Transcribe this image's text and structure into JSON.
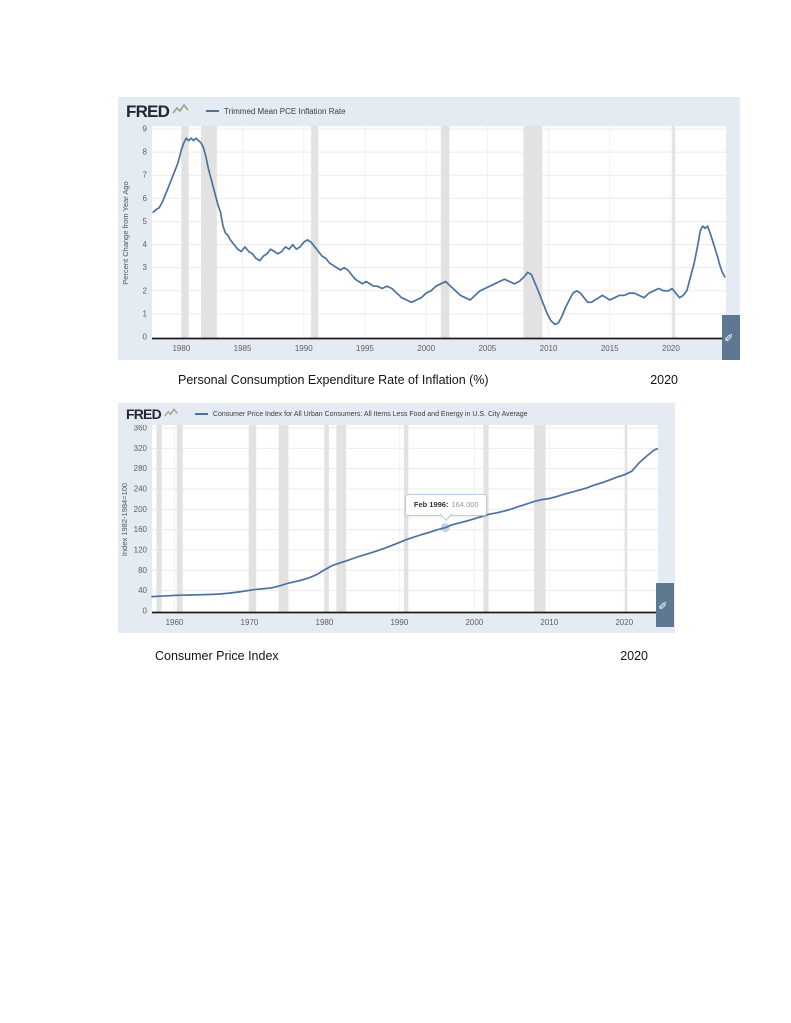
{
  "captions": [
    {
      "text": "Personal Consumption Expenditure Rate of Inflation (%)",
      "year": "2020"
    },
    {
      "text": "Consumer Price Index",
      "year": "2020"
    }
  ],
  "chart_data": [
    {
      "type": "line",
      "brand": "FRED",
      "legend_label": "Trimmed Mean PCE Inflation Rate",
      "title": "Trimmed Mean PCE Inflation Rate",
      "xlabel": "",
      "ylabel": "Percent Change from Year Ago",
      "ylim": [
        0,
        9
      ],
      "x_domain": [
        1977.6,
        2024.5
      ],
      "y_ticks": [
        0,
        1,
        2,
        3,
        4,
        5,
        6,
        7,
        8,
        9
      ],
      "x_ticks": [
        1980,
        1985,
        1990,
        1995,
        2000,
        2005,
        2010,
        2015,
        2020
      ],
      "grid": true,
      "legend_position": "top",
      "colors": {
        "line": "#4b72a0",
        "recession": "#e2e2e2",
        "axis": "#1c1c1c",
        "background": "#e4ebf2"
      },
      "recession_bands": [
        [
          1980.0,
          1980.6
        ],
        [
          1981.6,
          1982.9
        ],
        [
          1990.6,
          1991.2
        ],
        [
          2001.2,
          2001.9
        ],
        [
          2007.95,
          2009.5
        ],
        [
          2020.1,
          2020.35
        ]
      ],
      "series": [
        {
          "name": "Trimmed Mean PCE Inflation Rate",
          "points": [
            [
              1977.7,
              5.4
            ],
            [
              1977.9,
              5.5
            ],
            [
              1978.2,
              5.6
            ],
            [
              1978.5,
              5.9
            ],
            [
              1978.8,
              6.3
            ],
            [
              1979.1,
              6.7
            ],
            [
              1979.4,
              7.1
            ],
            [
              1979.7,
              7.5
            ],
            [
              1980.0,
              8.1
            ],
            [
              1980.2,
              8.4
            ],
            [
              1980.4,
              8.6
            ],
            [
              1980.6,
              8.5
            ],
            [
              1980.8,
              8.6
            ],
            [
              1981.0,
              8.5
            ],
            [
              1981.2,
              8.6
            ],
            [
              1981.4,
              8.5
            ],
            [
              1981.6,
              8.4
            ],
            [
              1981.8,
              8.2
            ],
            [
              1982.0,
              7.8
            ],
            [
              1982.2,
              7.3
            ],
            [
              1982.4,
              6.9
            ],
            [
              1982.6,
              6.5
            ],
            [
              1982.8,
              6.1
            ],
            [
              1983.0,
              5.7
            ],
            [
              1983.2,
              5.4
            ],
            [
              1983.4,
              4.8
            ],
            [
              1983.6,
              4.5
            ],
            [
              1983.8,
              4.4
            ],
            [
              1984.0,
              4.2
            ],
            [
              1984.3,
              4.0
            ],
            [
              1984.6,
              3.8
            ],
            [
              1984.9,
              3.7
            ],
            [
              1985.2,
              3.9
            ],
            [
              1985.5,
              3.7
            ],
            [
              1985.8,
              3.6
            ],
            [
              1986.1,
              3.4
            ],
            [
              1986.4,
              3.3
            ],
            [
              1986.7,
              3.5
            ],
            [
              1987.0,
              3.6
            ],
            [
              1987.3,
              3.8
            ],
            [
              1987.6,
              3.7
            ],
            [
              1987.9,
              3.6
            ],
            [
              1988.2,
              3.7
            ],
            [
              1988.5,
              3.9
            ],
            [
              1988.8,
              3.8
            ],
            [
              1989.1,
              4.0
            ],
            [
              1989.4,
              3.8
            ],
            [
              1989.7,
              3.9
            ],
            [
              1990.0,
              4.1
            ],
            [
              1990.3,
              4.2
            ],
            [
              1990.6,
              4.1
            ],
            [
              1990.9,
              3.9
            ],
            [
              1991.2,
              3.7
            ],
            [
              1991.5,
              3.5
            ],
            [
              1991.8,
              3.4
            ],
            [
              1992.1,
              3.2
            ],
            [
              1992.4,
              3.1
            ],
            [
              1992.7,
              3.0
            ],
            [
              1993.0,
              2.9
            ],
            [
              1993.3,
              3.0
            ],
            [
              1993.6,
              2.9
            ],
            [
              1993.9,
              2.7
            ],
            [
              1994.2,
              2.5
            ],
            [
              1994.5,
              2.4
            ],
            [
              1994.8,
              2.3
            ],
            [
              1995.1,
              2.4
            ],
            [
              1995.4,
              2.3
            ],
            [
              1995.7,
              2.2
            ],
            [
              1996.0,
              2.2
            ],
            [
              1996.4,
              2.1
            ],
            [
              1996.8,
              2.2
            ],
            [
              1997.2,
              2.1
            ],
            [
              1997.6,
              1.9
            ],
            [
              1998.0,
              1.7
            ],
            [
              1998.4,
              1.6
            ],
            [
              1998.8,
              1.5
            ],
            [
              1999.2,
              1.6
            ],
            [
              1999.6,
              1.7
            ],
            [
              2000.0,
              1.9
            ],
            [
              2000.4,
              2.0
            ],
            [
              2000.8,
              2.2
            ],
            [
              2001.2,
              2.3
            ],
            [
              2001.6,
              2.4
            ],
            [
              2002.0,
              2.2
            ],
            [
              2002.4,
              2.0
            ],
            [
              2002.8,
              1.8
            ],
            [
              2003.2,
              1.7
            ],
            [
              2003.6,
              1.6
            ],
            [
              2004.0,
              1.8
            ],
            [
              2004.4,
              2.0
            ],
            [
              2004.8,
              2.1
            ],
            [
              2005.2,
              2.2
            ],
            [
              2005.6,
              2.3
            ],
            [
              2006.0,
              2.4
            ],
            [
              2006.4,
              2.5
            ],
            [
              2006.8,
              2.4
            ],
            [
              2007.2,
              2.3
            ],
            [
              2007.6,
              2.4
            ],
            [
              2008.0,
              2.6
            ],
            [
              2008.3,
              2.8
            ],
            [
              2008.6,
              2.7
            ],
            [
              2009.0,
              2.2
            ],
            [
              2009.3,
              1.8
            ],
            [
              2009.6,
              1.4
            ],
            [
              2009.9,
              1.0
            ],
            [
              2010.2,
              0.7
            ],
            [
              2010.5,
              0.55
            ],
            [
              2010.8,
              0.6
            ],
            [
              2011.1,
              0.9
            ],
            [
              2011.4,
              1.3
            ],
            [
              2011.7,
              1.6
            ],
            [
              2012.0,
              1.9
            ],
            [
              2012.3,
              2.0
            ],
            [
              2012.6,
              1.9
            ],
            [
              2012.9,
              1.7
            ],
            [
              2013.2,
              1.5
            ],
            [
              2013.5,
              1.5
            ],
            [
              2013.8,
              1.6
            ],
            [
              2014.1,
              1.7
            ],
            [
              2014.4,
              1.8
            ],
            [
              2014.7,
              1.7
            ],
            [
              2015.0,
              1.6
            ],
            [
              2015.4,
              1.7
            ],
            [
              2015.8,
              1.8
            ],
            [
              2016.2,
              1.8
            ],
            [
              2016.6,
              1.9
            ],
            [
              2017.0,
              1.9
            ],
            [
              2017.4,
              1.8
            ],
            [
              2017.8,
              1.7
            ],
            [
              2018.2,
              1.9
            ],
            [
              2018.6,
              2.0
            ],
            [
              2019.0,
              2.1
            ],
            [
              2019.4,
              2.0
            ],
            [
              2019.8,
              2.0
            ],
            [
              2020.1,
              2.1
            ],
            [
              2020.4,
              1.9
            ],
            [
              2020.7,
              1.7
            ],
            [
              2021.0,
              1.8
            ],
            [
              2021.3,
              2.0
            ],
            [
              2021.6,
              2.6
            ],
            [
              2021.9,
              3.2
            ],
            [
              2022.2,
              4.0
            ],
            [
              2022.4,
              4.6
            ],
            [
              2022.6,
              4.8
            ],
            [
              2022.8,
              4.7
            ],
            [
              2023.0,
              4.8
            ],
            [
              2023.2,
              4.5
            ],
            [
              2023.5,
              4.0
            ],
            [
              2023.8,
              3.5
            ],
            [
              2024.0,
              3.1
            ],
            [
              2024.2,
              2.8
            ],
            [
              2024.4,
              2.6
            ]
          ]
        }
      ]
    },
    {
      "type": "line",
      "brand": "FRED",
      "legend_label": "Consumer Price Index for All Urban Consumers: All Items Less Food and Energy in U.S. City Average",
      "title": "Consumer Price Index for All Urban Consumers: All Items Less Food and Energy in U.S. City Average",
      "xlabel": "",
      "ylabel": "Index 1982-1984=100",
      "ylim": [
        0,
        360
      ],
      "x_domain": [
        1957,
        2024.5
      ],
      "y_ticks": [
        0,
        40,
        80,
        120,
        160,
        200,
        240,
        280,
        320,
        360
      ],
      "x_ticks": [
        1960,
        1970,
        1980,
        1990,
        2000,
        2010,
        2020
      ],
      "grid": true,
      "legend_position": "top",
      "colors": {
        "line": "#4b72a0",
        "recession": "#e2e2e2",
        "axis": "#1c1c1c",
        "background": "#e4ebf2"
      },
      "recession_bands": [
        [
          1957.6,
          1958.3
        ],
        [
          1960.3,
          1961.1
        ],
        [
          1969.9,
          1970.9
        ],
        [
          1973.9,
          1975.2
        ],
        [
          1980.0,
          1980.6
        ],
        [
          1981.6,
          1982.9
        ],
        [
          1990.6,
          1991.2
        ],
        [
          2001.2,
          2001.9
        ],
        [
          2007.95,
          2009.5
        ],
        [
          2020.1,
          2020.35
        ]
      ],
      "tooltip": {
        "label": "Feb 1996:",
        "value": "164.000",
        "x": 1996.12,
        "y": 164
      },
      "series": [
        {
          "name": "Consumer Price Index for All Urban Consumers: All Items Less Food and Energy in U.S. City Average",
          "points": [
            [
              1957,
              28.4
            ],
            [
              1958,
              29.2
            ],
            [
              1959,
              29.9
            ],
            [
              1960,
              30.6
            ],
            [
              1961,
              31.0
            ],
            [
              1962,
              31.4
            ],
            [
              1963,
              31.8
            ],
            [
              1964,
              32.3
            ],
            [
              1965,
              32.7
            ],
            [
              1966,
              33.5
            ],
            [
              1967,
              34.7
            ],
            [
              1968,
              36.3
            ],
            [
              1969,
              38.4
            ],
            [
              1970,
              40.8
            ],
            [
              1971,
              42.7
            ],
            [
              1972,
              44.0
            ],
            [
              1973,
              45.6
            ],
            [
              1974,
              49.4
            ],
            [
              1975,
              53.9
            ],
            [
              1976,
              57.4
            ],
            [
              1977,
              61.0
            ],
            [
              1978,
              65.5
            ],
            [
              1979,
              71.9
            ],
            [
              1980,
              80.9
            ],
            [
              1981,
              89.2
            ],
            [
              1982,
              94.3
            ],
            [
              1983,
              99.0
            ],
            [
              1984,
              104.3
            ],
            [
              1985,
              108.9
            ],
            [
              1986,
              113.5
            ],
            [
              1987,
              118.2
            ],
            [
              1988,
              123.4
            ],
            [
              1989,
              129.0
            ],
            [
              1990,
              135.0
            ],
            [
              1991,
              140.9
            ],
            [
              1992,
              145.8
            ],
            [
              1993,
              150.5
            ],
            [
              1994,
              154.9
            ],
            [
              1995,
              159.5
            ],
            [
              1996.12,
              164.0
            ],
            [
              1997,
              169.5
            ],
            [
              1998,
              173.4
            ],
            [
              1999,
              177.0
            ],
            [
              2000,
              181.3
            ],
            [
              2001,
              186.1
            ],
            [
              2002,
              190.5
            ],
            [
              2003,
              193.2
            ],
            [
              2004,
              196.6
            ],
            [
              2005,
              200.9
            ],
            [
              2006,
              205.9
            ],
            [
              2007,
              210.7
            ],
            [
              2008,
              215.6
            ],
            [
              2009,
              219.2
            ],
            [
              2010,
              221.3
            ],
            [
              2011,
              225.0
            ],
            [
              2012,
              229.8
            ],
            [
              2013,
              233.8
            ],
            [
              2014,
              237.9
            ],
            [
              2015,
              242.1
            ],
            [
              2016,
              247.6
            ],
            [
              2017,
              252.2
            ],
            [
              2018,
              257.6
            ],
            [
              2019,
              263.2
            ],
            [
              2020,
              268.0
            ],
            [
              2021,
              275.0
            ],
            [
              2022,
              292.0
            ],
            [
              2023,
              305.0
            ],
            [
              2024,
              317.0
            ],
            [
              2024.4,
              319.0
            ]
          ]
        }
      ]
    }
  ]
}
